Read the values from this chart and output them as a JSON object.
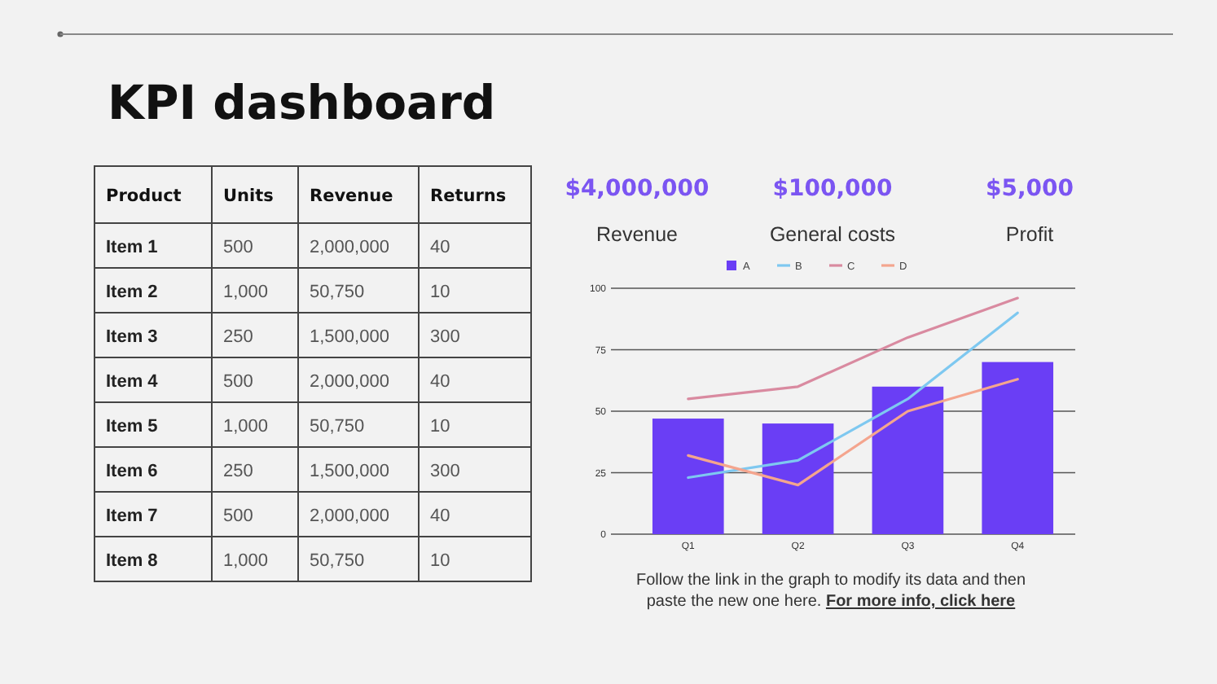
{
  "chart_data": [
    {
      "type": "other",
      "title": "KPI dashboard",
      "categories": [
        "Product",
        "Units",
        "Revenue",
        "Returns"
      ],
      "y_categories": [
        "Item 1",
        "Item 2",
        "Item 3",
        "Item 4",
        "Item 5",
        "Item 6",
        "Item 7",
        "Item 8"
      ],
      "cell_labels": [
        [
          "500",
          "2,000,000",
          "40"
        ],
        [
          "1,000",
          "50,750",
          "10"
        ],
        [
          "250",
          "1,500,000",
          "300"
        ],
        [
          "500",
          "2,000,000",
          "40"
        ],
        [
          "1,000",
          "50,750",
          "10"
        ],
        [
          "250",
          "1,500,000",
          "300"
        ],
        [
          "500",
          "2,000,000",
          "40"
        ],
        [
          "1,000",
          "50,750",
          "10"
        ]
      ]
    },
    {
      "type": "other",
      "categories": [
        "Revenue",
        "General costs",
        "Profit"
      ],
      "value_labels": [
        "$4,000,000",
        "$100,000",
        "$5,000"
      ]
    },
    {
      "type": "bar",
      "categories": [
        "Q1",
        "Q2",
        "Q3",
        "Q4"
      ],
      "ylim": [
        0,
        100
      ],
      "yticks": [
        0,
        25,
        50,
        75,
        100
      ],
      "grid": "y",
      "legend": "top",
      "series": [
        {
          "name": "A",
          "type": "bar",
          "color": "#6a3ef5",
          "values": [
            47,
            45,
            60,
            70
          ]
        },
        {
          "name": "B",
          "type": "line",
          "color": "#7ec8f0",
          "values": [
            23,
            30,
            55,
            90
          ]
        },
        {
          "name": "C",
          "type": "line",
          "color": "#d98aa0",
          "values": [
            55,
            60,
            80,
            96
          ]
        },
        {
          "name": "D",
          "type": "line",
          "color": "#f4a58e",
          "values": [
            32,
            20,
            50,
            63
          ]
        }
      ],
      "annotations": [
        "Follow the link in the graph to modify its data and then paste the new one here.",
        "For more info, click here"
      ]
    }
  ]
}
